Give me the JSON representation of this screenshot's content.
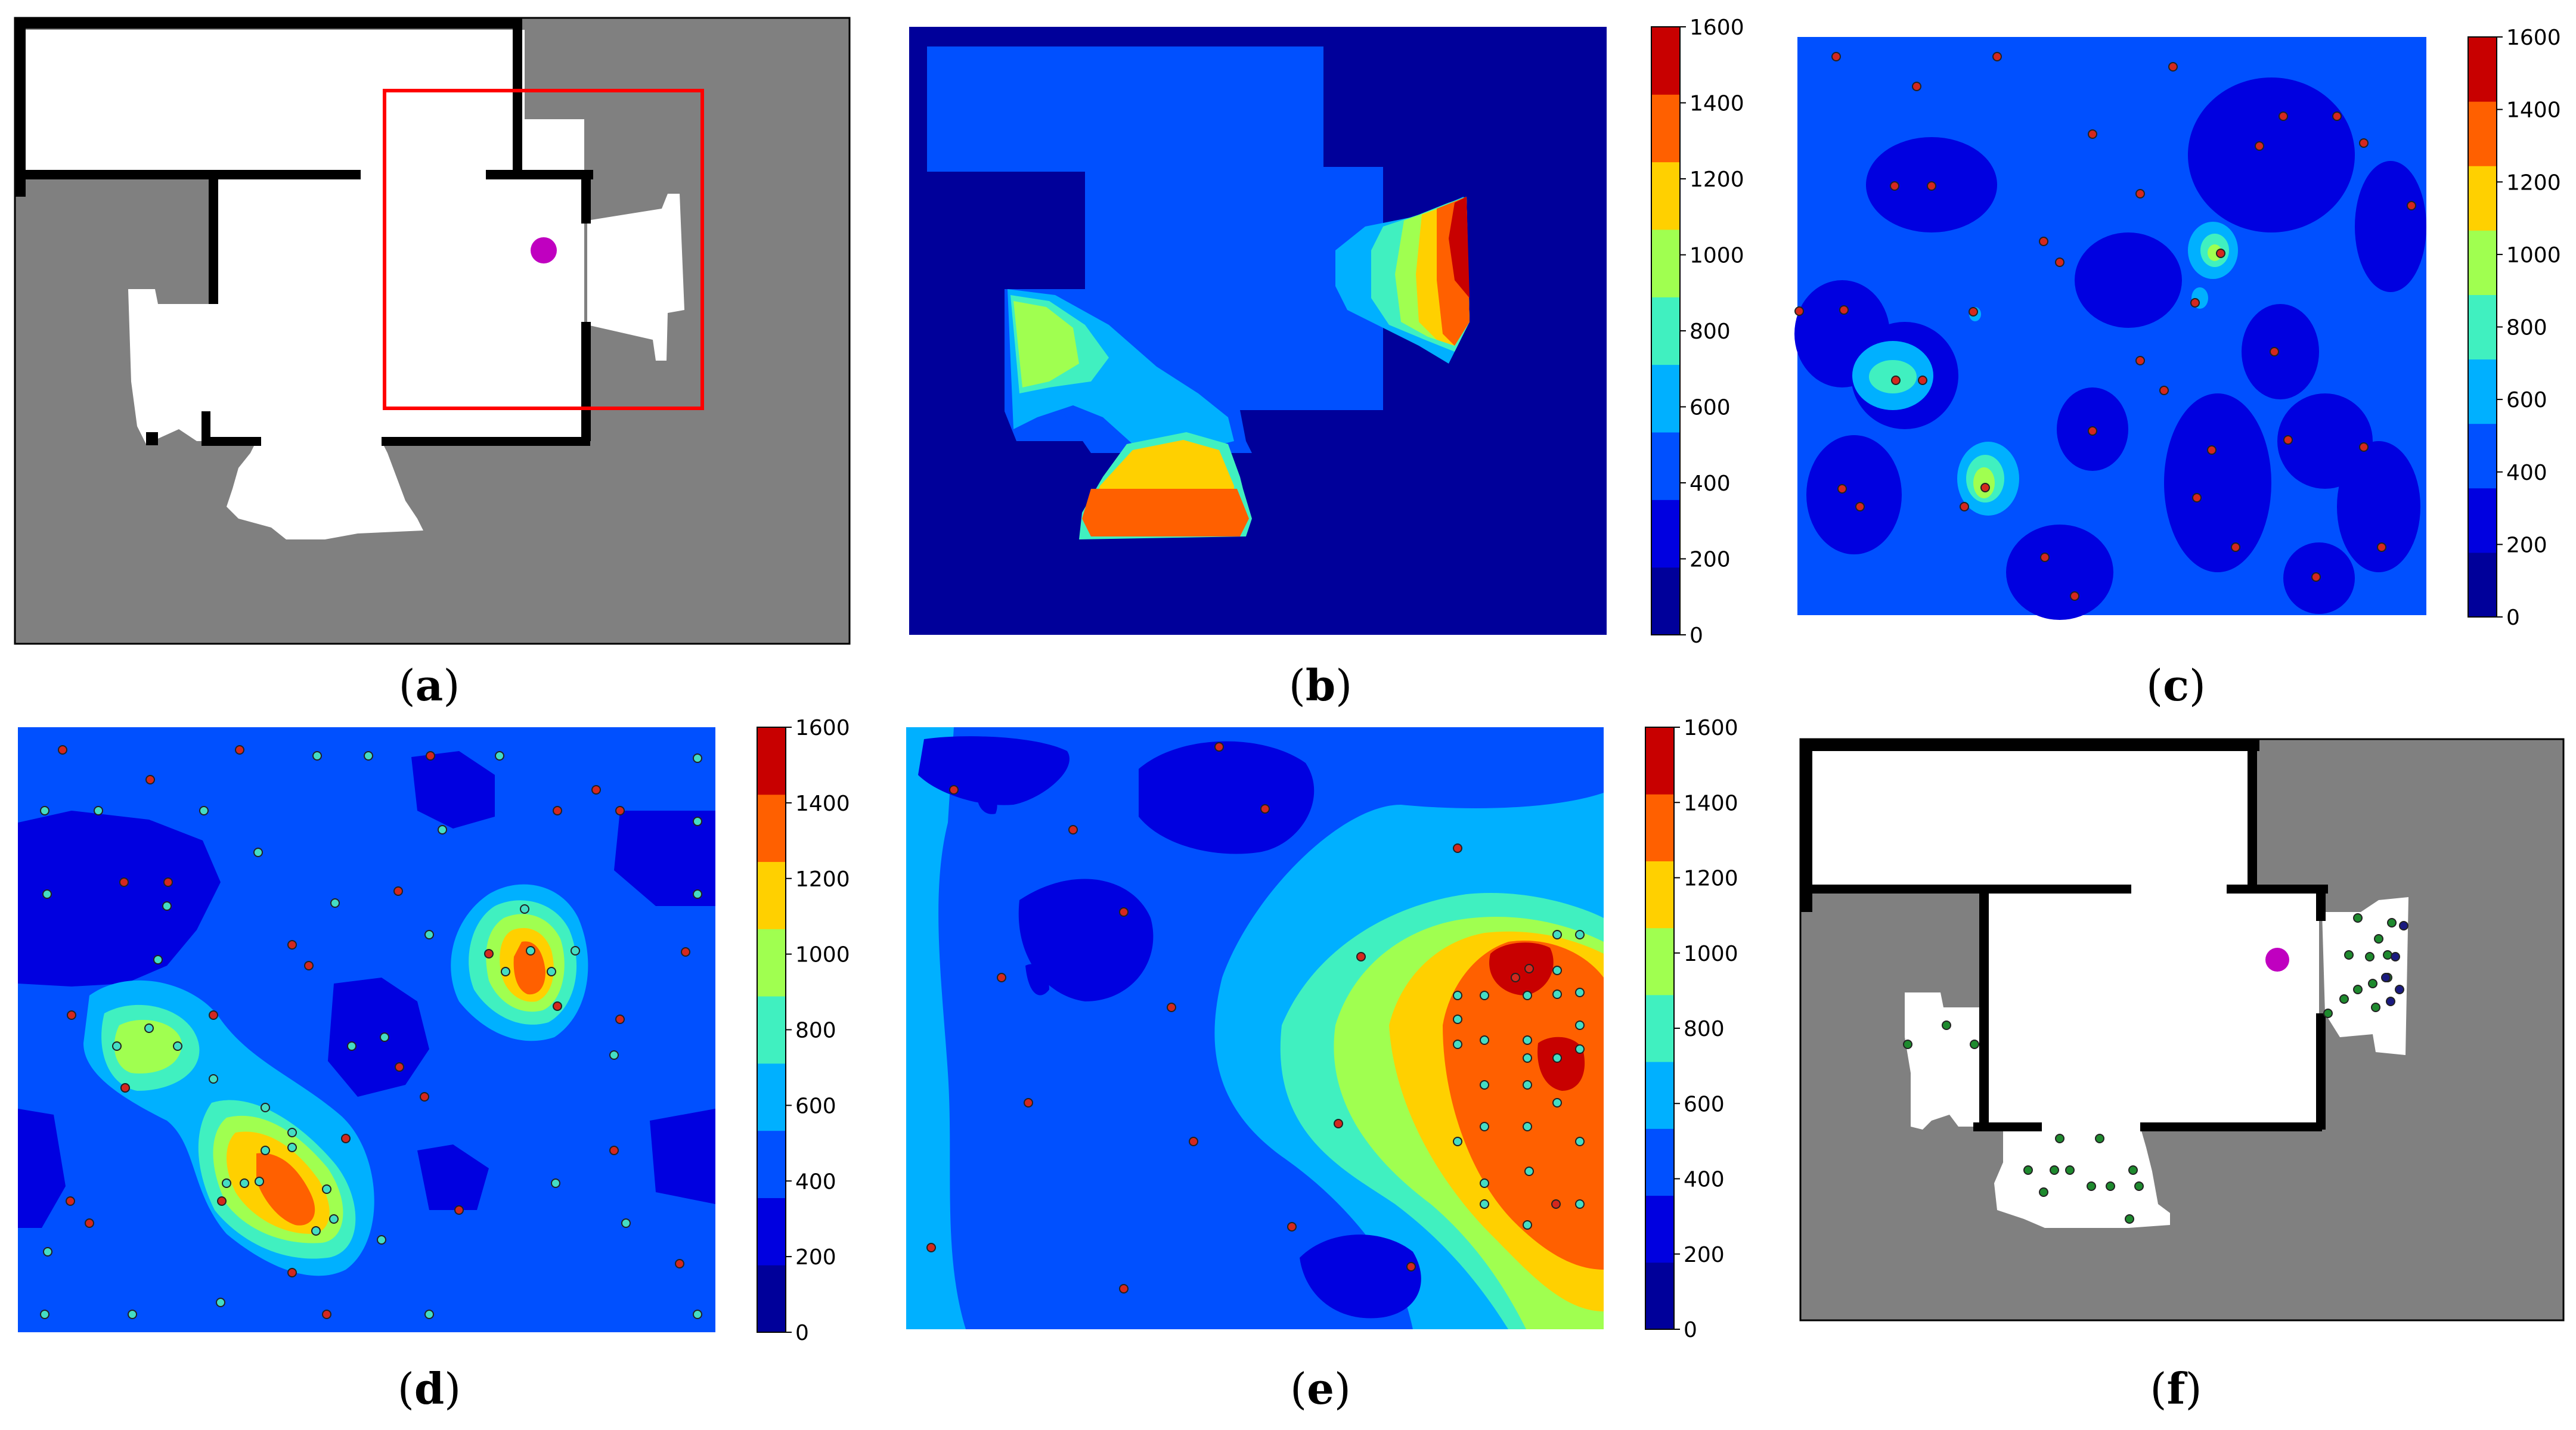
{
  "panel_labels": [
    {
      "open": "(",
      "letter": "a",
      "close": ")"
    },
    {
      "open": "(",
      "letter": "b",
      "close": ")"
    },
    {
      "open": "(",
      "letter": "c",
      "close": ")"
    },
    {
      "open": "(",
      "letter": "d",
      "close": ")"
    },
    {
      "open": "(",
      "letter": "e",
      "close": ")"
    },
    {
      "open": "(",
      "letter": "f",
      "close": ")"
    }
  ],
  "colors": {
    "unknown": "#808080",
    "free": "#ffffff",
    "wall": "#000000",
    "robot": "#c000c0",
    "roi": "#ff0000",
    "point_hot": "#d4281e",
    "point_cool": "#44ddc4",
    "point_green": "#1e8a2e",
    "point_navy": "#1a1a80"
  },
  "chart_data": [
    {
      "panel": "a",
      "type": "map",
      "title": "",
      "layers": [
        "occupancy-grid",
        "robot-position",
        "region-of-interest"
      ]
    },
    {
      "panel": "b",
      "type": "heatmap",
      "title": "",
      "colorbar": {
        "ticks": [
          "0",
          "200",
          "400",
          "600",
          "800",
          "1000",
          "1200",
          "1400",
          "1600"
        ],
        "range": [
          0,
          1600
        ],
        "colors": [
          "#00009a",
          "#0000e0",
          "#0050ff",
          "#00b0ff",
          "#40f0c0",
          "#a0ff50",
          "#ffd000",
          "#ff6000",
          "#c80000"
        ]
      }
    },
    {
      "panel": "c",
      "type": "heatmap",
      "title": "",
      "colorbar": {
        "ticks": [
          "0",
          "200",
          "400",
          "600",
          "800",
          "1000",
          "1200",
          "1400",
          "1600"
        ],
        "range": [
          0,
          1600
        ]
      },
      "points": "red sample points"
    },
    {
      "panel": "d",
      "type": "heatmap",
      "title": "",
      "colorbar": {
        "ticks": [
          "0",
          "200",
          "400",
          "600",
          "800",
          "1000",
          "1200",
          "1400",
          "1600"
        ],
        "range": [
          0,
          1600
        ]
      },
      "points": "red and cyan sample points"
    },
    {
      "panel": "e",
      "type": "heatmap",
      "title": "",
      "colorbar": {
        "ticks": [
          "0",
          "200",
          "400",
          "600",
          "800",
          "1000",
          "1200",
          "1400",
          "1600"
        ],
        "range": [
          0,
          1600
        ]
      },
      "points": "red and cyan sample points"
    },
    {
      "panel": "f",
      "type": "map",
      "title": "",
      "layers": [
        "occupancy-grid",
        "robot-position",
        "selected points"
      ]
    }
  ]
}
